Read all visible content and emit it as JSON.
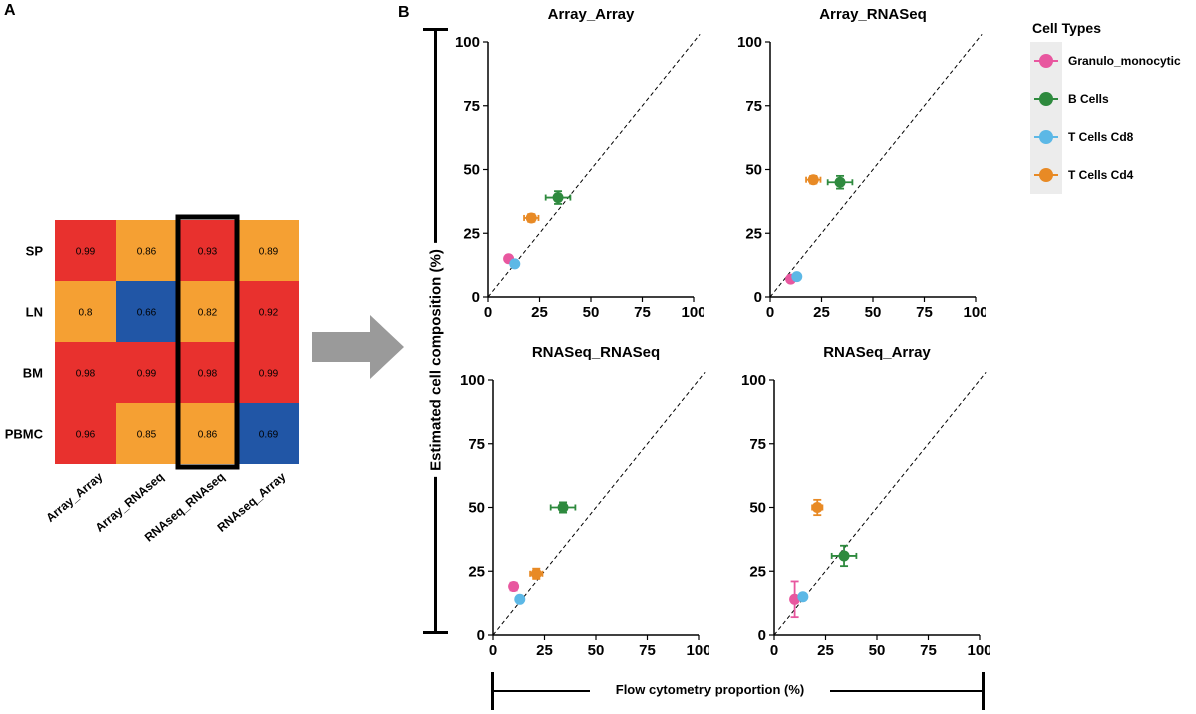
{
  "panel_labels": {
    "a": "A",
    "b": "B"
  },
  "heatmap": {
    "rows": [
      "SP",
      "LN",
      "BM",
      "PBMC"
    ],
    "cols": [
      "Array_Array",
      "Array_RNAseq",
      "RNAseq_RNAseq",
      "RNAseq_Array"
    ],
    "values": [
      [
        "0.99",
        "0.86",
        "0.93",
        "0.89"
      ],
      [
        "0.8",
        "0.66",
        "0.82",
        "0.92"
      ],
      [
        "0.98",
        "0.99",
        "0.98",
        "0.99"
      ],
      [
        "0.96",
        "0.85",
        "0.86",
        "0.69"
      ]
    ],
    "cell_colors": [
      [
        "#e8312e",
        "#f5a033",
        "#e8312e",
        "#f5a033"
      ],
      [
        "#f5a033",
        "#2156a6",
        "#f5a033",
        "#e8312e"
      ],
      [
        "#e8312e",
        "#e8312e",
        "#e8312e",
        "#e8312e"
      ],
      [
        "#e8312e",
        "#f5a033",
        "#f5a033",
        "#2156a6"
      ]
    ],
    "highlighted_column": "RNAseq_RNAseq"
  },
  "axes": {
    "ylabel": "Estimated cell composition (%)",
    "xlabel": "Flow cytometry proportion (%)"
  },
  "legend": {
    "title": "Cell Types",
    "items": [
      {
        "label": "Granulo_monocytic",
        "color": "#e8579f"
      },
      {
        "label": "B Cells",
        "color": "#2e8a3e"
      },
      {
        "label": "T Cells Cd8",
        "color": "#5cb8e6"
      },
      {
        "label": "T Cells Cd4",
        "color": "#e88a25"
      }
    ]
  },
  "chart_data": [
    {
      "type": "scatter",
      "title": "Array_Array",
      "xlim": [
        0,
        100
      ],
      "ylim": [
        0,
        100
      ],
      "xticks": [
        "0",
        "25",
        "50",
        "75",
        "100"
      ],
      "yticks": [
        "0",
        "25",
        "50",
        "75",
        "100"
      ],
      "reference_line": "y = x",
      "points": [
        {
          "series": "Granulo_monocytic",
          "x": 10,
          "y": 15,
          "xerr": 1.5,
          "yerr": 1
        },
        {
          "series": "B Cells",
          "x": 34,
          "y": 39,
          "xerr": 6,
          "yerr": 2.5
        },
        {
          "series": "T Cells Cd8",
          "x": 13,
          "y": 13,
          "xerr": 1.5,
          "yerr": 1
        },
        {
          "series": "T Cells Cd4",
          "x": 21,
          "y": 31,
          "xerr": 3.5,
          "yerr": 1.5
        }
      ]
    },
    {
      "type": "scatter",
      "title": "Array_RNASeq",
      "xlim": [
        0,
        100
      ],
      "ylim": [
        0,
        100
      ],
      "xticks": [
        "0",
        "25",
        "50",
        "75",
        "100"
      ],
      "yticks": [
        "0",
        "25",
        "50",
        "75",
        "100"
      ],
      "reference_line": "y = x",
      "points": [
        {
          "series": "Granulo_monocytic",
          "x": 10,
          "y": 7,
          "xerr": 1.5,
          "yerr": 1
        },
        {
          "series": "B Cells",
          "x": 34,
          "y": 45,
          "xerr": 6,
          "yerr": 2.5
        },
        {
          "series": "T Cells Cd8",
          "x": 13,
          "y": 8,
          "xerr": 1.5,
          "yerr": 1
        },
        {
          "series": "T Cells Cd4",
          "x": 21,
          "y": 46,
          "xerr": 3.5,
          "yerr": 1.5
        }
      ]
    },
    {
      "type": "scatter",
      "title": "RNASeq_RNASeq",
      "xlim": [
        0,
        100
      ],
      "ylim": [
        0,
        100
      ],
      "xticks": [
        "0",
        "25",
        "50",
        "75",
        "100"
      ],
      "yticks": [
        "0",
        "25",
        "50",
        "75",
        "100"
      ],
      "reference_line": "y = x",
      "points": [
        {
          "series": "Granulo_monocytic",
          "x": 10,
          "y": 19,
          "xerr": 1.5,
          "yerr": 1.5
        },
        {
          "series": "B Cells",
          "x": 34,
          "y": 50,
          "xerr": 6,
          "yerr": 2
        },
        {
          "series": "T Cells Cd8",
          "x": 13,
          "y": 14,
          "xerr": 1.5,
          "yerr": 1
        },
        {
          "series": "T Cells Cd4",
          "x": 21,
          "y": 24,
          "xerr": 3,
          "yerr": 2
        }
      ]
    },
    {
      "type": "scatter",
      "title": "RNASeq_Array",
      "xlim": [
        0,
        100
      ],
      "ylim": [
        0,
        100
      ],
      "xticks": [
        "0",
        "25",
        "50",
        "75",
        "100"
      ],
      "yticks": [
        "0",
        "25",
        "50",
        "75",
        "100"
      ],
      "reference_line": "y = x",
      "points": [
        {
          "series": "Granulo_monocytic",
          "x": 10,
          "y": 14,
          "xerr": 1,
          "yerr": 7
        },
        {
          "series": "B Cells",
          "x": 34,
          "y": 31,
          "xerr": 6,
          "yerr": 4
        },
        {
          "series": "T Cells Cd8",
          "x": 14,
          "y": 15,
          "xerr": 1.5,
          "yerr": 1
        },
        {
          "series": "T Cells Cd4",
          "x": 21,
          "y": 50,
          "xerr": 2.5,
          "yerr": 3
        }
      ]
    }
  ]
}
